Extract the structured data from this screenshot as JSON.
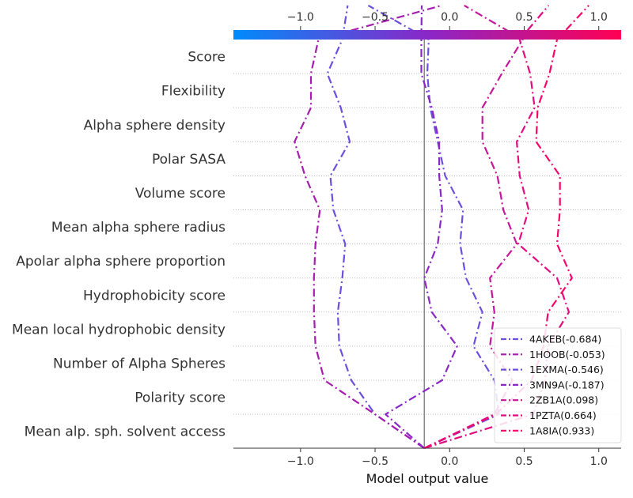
{
  "chart_data": {
    "type": "line",
    "title": "",
    "xlabel": "Model output value",
    "xlim": [
      -1.45,
      1.15
    ],
    "base_value": -0.17,
    "top_axis_ticks": [
      "−1.0",
      "−0.5",
      "0.0",
      "0.5",
      "1.0"
    ],
    "bottom_axis_ticks": [
      "−1.0",
      "−0.5",
      "0.0",
      "0.5",
      "1.0"
    ],
    "tick_values": [
      -1.0,
      -0.5,
      0.0,
      0.5,
      1.0
    ],
    "colorbar": {
      "range": [
        -1.0,
        1.0
      ],
      "colors": [
        "#008bfb",
        "#8a27c7",
        "#ff0052"
      ]
    },
    "grid": "dotted horizontal",
    "legend_position": "bottom-right",
    "features": [
      "Score",
      "Flexibility",
      "Alpha sphere density",
      "Polar SASA",
      "Volume score",
      "Mean alpha sphere radius",
      "Apolar alpha sphere proportion",
      "Hydrophobicity score",
      "Mean local hydrophobic density",
      "Number of Alpha Spheres",
      "Polarity score",
      "Mean alp. sph. solvent access"
    ],
    "note_values": "values ordered from bottom (base value) up to top (final output)",
    "series": [
      {
        "name": "4AKEB(-0.684)",
        "color": "#6c4fde",
        "values": [
          -0.17,
          -0.5,
          -0.66,
          -0.74,
          -0.75,
          -0.72,
          -0.7,
          -0.78,
          -0.8,
          -0.67,
          -0.73,
          -0.82,
          -0.72,
          -0.684
        ]
      },
      {
        "name": "1HOOB(-0.053)",
        "color": "#a71cb0",
        "values": [
          -0.17,
          -0.5,
          -0.84,
          -0.9,
          -0.91,
          -0.91,
          -0.9,
          -0.87,
          -0.97,
          -1.04,
          -0.93,
          -0.93,
          -0.88,
          -0.053
        ]
      },
      {
        "name": "1EXMA(-0.546)",
        "color": "#6c4fde",
        "values": [
          -0.17,
          0.33,
          0.3,
          0.16,
          0.22,
          0.11,
          0.07,
          0.09,
          -0.03,
          -0.08,
          -0.13,
          -0.15,
          -0.14,
          -0.546
        ]
      },
      {
        "name": "3MN9A(-0.187)",
        "color": "#8a27c7",
        "values": [
          -0.17,
          -0.43,
          -0.05,
          0.05,
          -0.12,
          -0.17,
          -0.08,
          -0.05,
          -0.07,
          -0.07,
          -0.12,
          -0.19,
          -0.19,
          -0.187
        ]
      },
      {
        "name": "2ZB1A(0.098)",
        "color": "#c5179c",
        "values": [
          -0.17,
          0.3,
          0.42,
          0.27,
          0.3,
          0.27,
          0.45,
          0.36,
          0.32,
          0.22,
          0.22,
          0.35,
          0.49,
          0.098
        ]
      },
      {
        "name": "1PZTA(0.664)",
        "color": "#e20b80",
        "values": [
          -0.17,
          0.56,
          0.64,
          0.66,
          0.8,
          0.72,
          0.46,
          0.53,
          0.47,
          0.45,
          0.57,
          0.54,
          0.47,
          0.664
        ]
      },
      {
        "name": "1A8IA(0.933)",
        "color": "#f8056a",
        "values": [
          -0.17,
          0.31,
          0.55,
          0.63,
          0.66,
          0.82,
          0.72,
          0.74,
          0.74,
          0.58,
          0.59,
          0.67,
          0.72,
          0.933
        ]
      }
    ]
  }
}
